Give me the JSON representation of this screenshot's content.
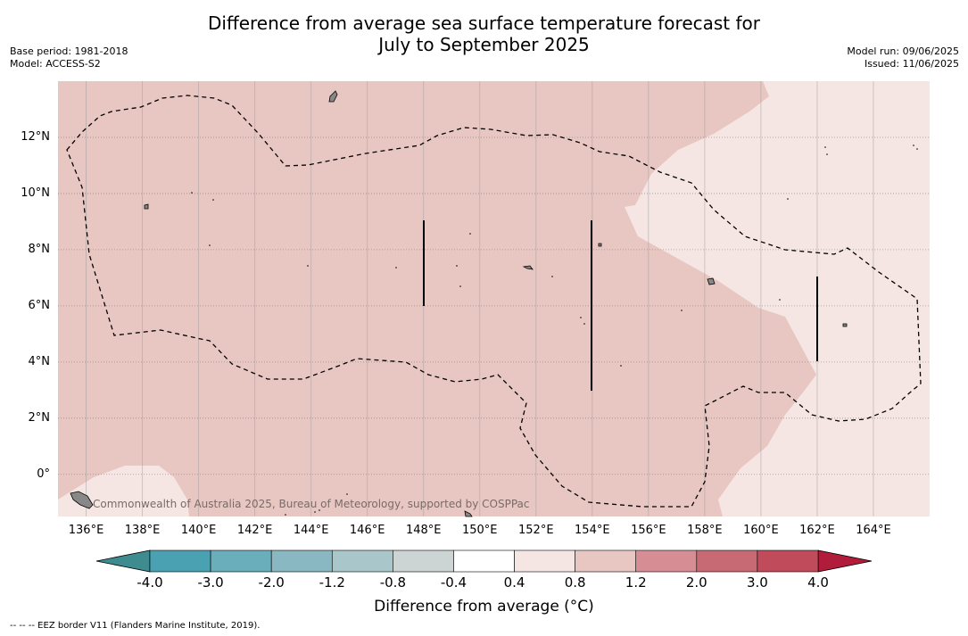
{
  "title_line1": "Difference from average sea surface temperature forecast for",
  "title_line2": "July to September 2025",
  "meta_left": [
    "Base period: 1981-2018",
    "Model: ACCESS-S2"
  ],
  "meta_right": [
    "Model run: 09/06/2025",
    "Issued: 11/06/2025"
  ],
  "copyright": "Commonwealth of Australia 2025, Bureau of Meteorology, supported by COSPPac",
  "colorbar_title": "Difference from average (°C)",
  "footer": "--  --  -- EEZ border V11 (Flanders Marine Institute, 2019).",
  "colors": {
    "anomaly_0_4_to_0_8": "#f5e6e4",
    "anomaly_0_8_to_1_2": "#e8c7c2",
    "grid": "#999999"
  },
  "chart_data": {
    "type": "heatmap",
    "x_ticks": [
      "136°E",
      "138°E",
      "140°E",
      "142°E",
      "144°E",
      "146°E",
      "148°E",
      "150°E",
      "152°E",
      "154°E",
      "156°E",
      "158°E",
      "160°E",
      "162°E",
      "164°E"
    ],
    "x_tick_values": [
      136,
      138,
      140,
      142,
      144,
      146,
      148,
      150,
      152,
      154,
      156,
      158,
      160,
      162,
      164
    ],
    "y_ticks": [
      "12°N",
      "10°N",
      "8°N",
      "6°N",
      "4°N",
      "2°N",
      "0°"
    ],
    "y_tick_values": [
      12,
      10,
      8,
      6,
      4,
      2,
      0
    ],
    "xlim": [
      135,
      166
    ],
    "ylim": [
      -1.5,
      14
    ],
    "grid": true,
    "colorbar": {
      "levels": [
        "-4.0",
        "-3.0",
        "-2.0",
        "-1.2",
        "-0.8",
        "-0.4",
        "0.4",
        "0.8",
        "1.2",
        "2.0",
        "3.0",
        "4.0"
      ],
      "colors": [
        "#4aa1b1",
        "#6aadbb",
        "#8ab8c2",
        "#a9c7ca",
        "#ccd4d4",
        "#ffffff",
        "#f5e6e4",
        "#e8c7c2",
        "#d68e94",
        "#c86a74",
        "#c04b5a"
      ],
      "extend_low_color": "#3e8c8f",
      "extend_high_color": "#b01c3a"
    }
  }
}
